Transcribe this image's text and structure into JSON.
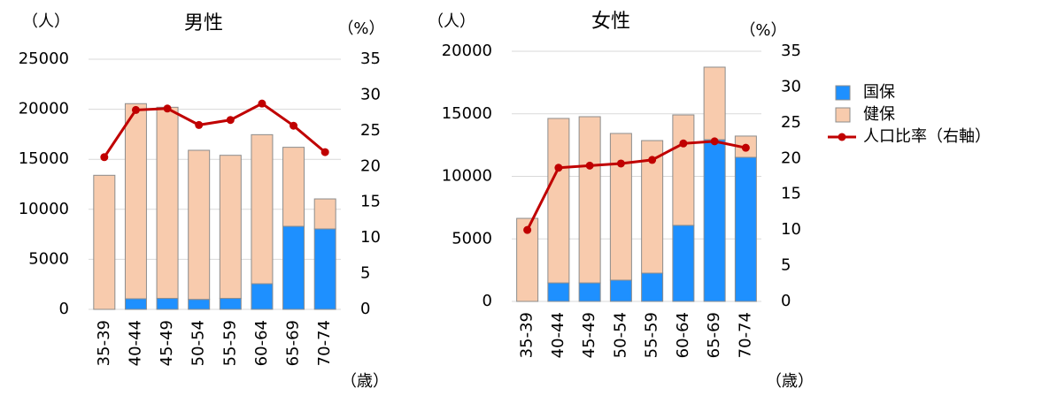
{
  "chart_data": [
    {
      "type": "bar",
      "title": "男性",
      "y_label": "（人）",
      "y2_label": "（%）",
      "x_label": "（歳）",
      "categories": [
        "35-39",
        "40-44",
        "45-49",
        "50-54",
        "55-59",
        "60-64",
        "65-69",
        "70-74"
      ],
      "stacked": true,
      "series": [
        {
          "name": "国保",
          "color": "#1e90ff",
          "values": [
            0,
            1060,
            1100,
            1000,
            1100,
            2560,
            8300,
            8040
          ]
        },
        {
          "name": "健保",
          "color": "#f8cbad",
          "values": [
            13400,
            19500,
            19100,
            14900,
            14300,
            14900,
            7900,
            3000
          ]
        },
        {
          "name": "人口比率（右軸）",
          "color": "#c00000",
          "type": "line",
          "axis": "y2",
          "values": [
            21.3,
            27.9,
            28.1,
            25.8,
            26.5,
            28.8,
            25.7,
            22.0
          ]
        }
      ],
      "ylim": [
        0,
        25000
      ],
      "yticks": [
        0,
        5000,
        10000,
        15000,
        20000,
        25000
      ],
      "y2lim": [
        0,
        35
      ],
      "y2ticks": [
        0,
        5,
        10,
        15,
        20,
        25,
        30,
        35
      ],
      "grid": true,
      "legend": "right"
    },
    {
      "type": "bar",
      "title": "女性",
      "y_label": "（人）",
      "y2_label": "（%）",
      "x_label": "（歳）",
      "categories": [
        "35-39",
        "40-44",
        "45-49",
        "50-54",
        "55-59",
        "60-64",
        "65-69",
        "70-74"
      ],
      "stacked": true,
      "series": [
        {
          "color": "#1e90ff",
          "values": [
            0,
            1480,
            1480,
            1700,
            2260,
            6080,
            12930,
            11520
          ]
        },
        {
          "color": "#f8cbad",
          "values": [
            6640,
            13150,
            13290,
            11730,
            10600,
            8830,
            5800,
            1700
          ]
        },
        {
          "color": "#c00000",
          "type": "line",
          "axis": "y2",
          "values": [
            10.0,
            18.7,
            19.0,
            19.3,
            19.8,
            22.1,
            22.4,
            21.5
          ]
        }
      ],
      "ylim": [
        0,
        20000
      ],
      "yticks": [
        0,
        5000,
        10000,
        15000,
        20000
      ],
      "y2lim": [
        0,
        35
      ],
      "y2ticks": [
        0,
        5,
        10,
        15,
        20,
        25,
        30,
        35
      ],
      "grid": true
    }
  ]
}
